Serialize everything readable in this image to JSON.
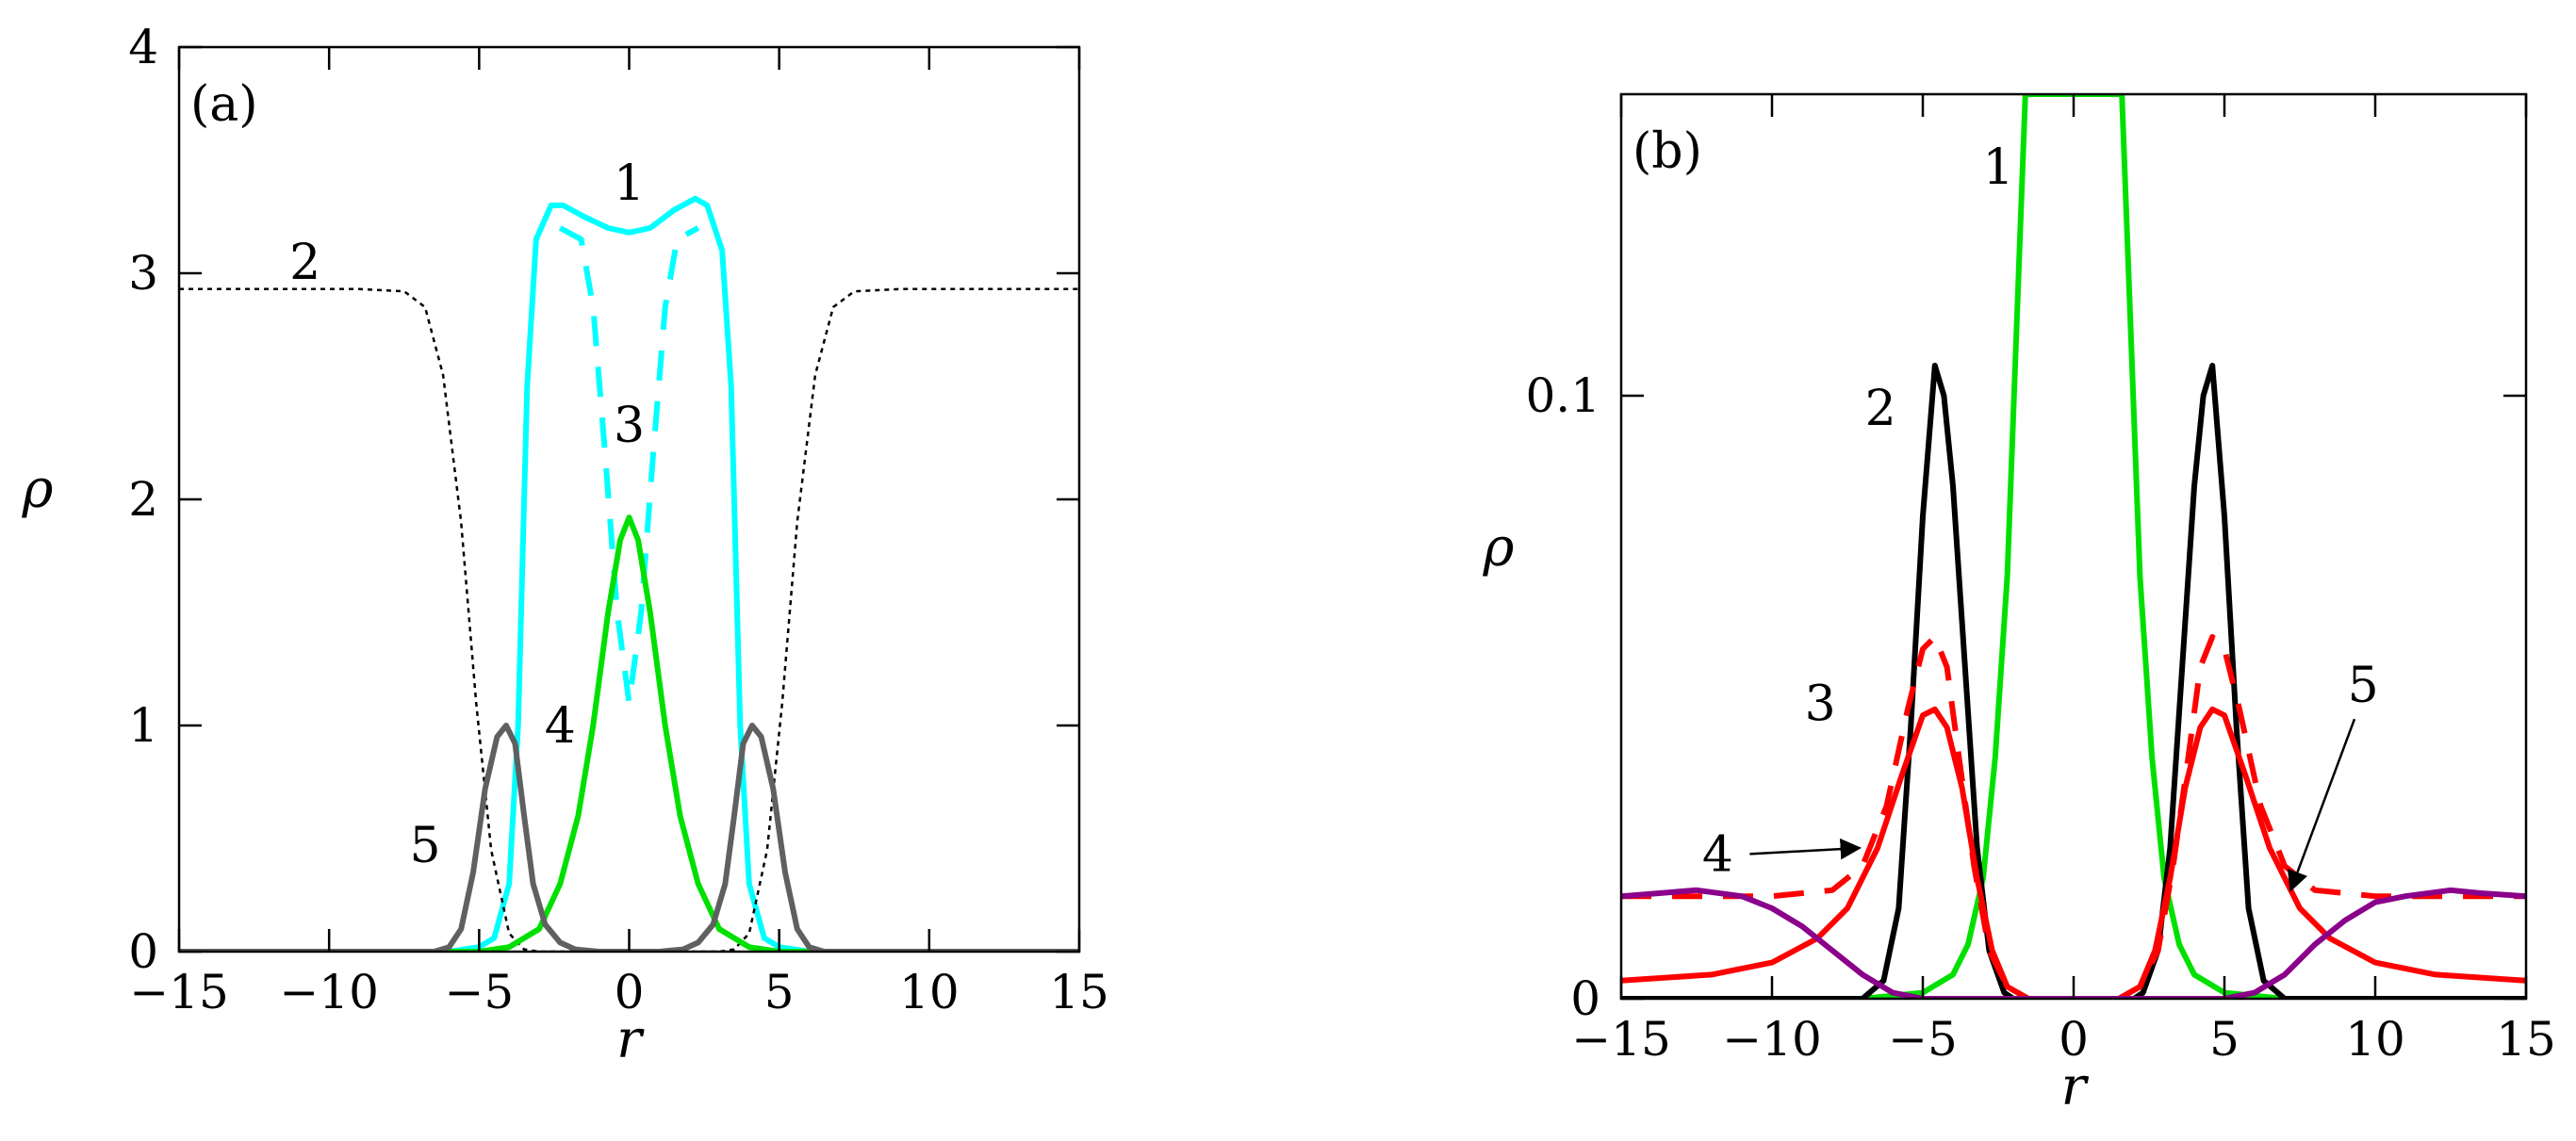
{
  "chart_data": [
    {
      "id": "a",
      "type": "line",
      "panel_label": "(a)",
      "xlabel": "r",
      "ylabel": "ρ",
      "xlim": [
        -15,
        15
      ],
      "ylim": [
        0,
        4
      ],
      "xticks": [
        -15,
        -10,
        -5,
        0,
        5,
        10,
        15
      ],
      "xtick_labels": [
        "−15",
        "−10",
        "−5",
        "0",
        "5",
        "10",
        "15"
      ],
      "yticks": [
        0,
        1,
        2,
        3,
        4
      ],
      "ytick_labels": [
        "0",
        "1",
        "2",
        "3",
        "4"
      ],
      "series": [
        {
          "name": "1 (solid)",
          "color": "#00ffff",
          "style": "solid",
          "points": [
            [
              -15,
              0
            ],
            [
              -6,
              0
            ],
            [
              -5,
              0.02
            ],
            [
              -4.5,
              0.06
            ],
            [
              -4,
              0.3
            ],
            [
              -3.7,
              1.0
            ],
            [
              -3.4,
              2.5
            ],
            [
              -3.1,
              3.15
            ],
            [
              -2.6,
              3.3
            ],
            [
              -2.2,
              3.3
            ],
            [
              -1.5,
              3.25
            ],
            [
              -0.7,
              3.2
            ],
            [
              0,
              3.18
            ],
            [
              0.7,
              3.2
            ],
            [
              1.5,
              3.28
            ],
            [
              2.2,
              3.33
            ],
            [
              2.6,
              3.3
            ],
            [
              3.1,
              3.1
            ],
            [
              3.4,
              2.5
            ],
            [
              3.7,
              1.0
            ],
            [
              4,
              0.3
            ],
            [
              4.5,
              0.06
            ],
            [
              5,
              0.02
            ],
            [
              6,
              0
            ],
            [
              15,
              0
            ]
          ]
        },
        {
          "name": "2 (dotted)",
          "color": "#000000",
          "style": "dotted",
          "points": [
            [
              -15,
              2.93
            ],
            [
              -9,
              2.93
            ],
            [
              -7.5,
              2.92
            ],
            [
              -6.8,
              2.85
            ],
            [
              -6.2,
              2.55
            ],
            [
              -5.6,
              1.9
            ],
            [
              -5.1,
              1.1
            ],
            [
              -4.6,
              0.45
            ],
            [
              -4,
              0.08
            ],
            [
              -3.5,
              0.01
            ],
            [
              -3,
              0
            ],
            [
              3,
              0
            ],
            [
              3.5,
              0.01
            ],
            [
              4,
              0.08
            ],
            [
              4.6,
              0.45
            ],
            [
              5.1,
              1.1
            ],
            [
              5.6,
              1.9
            ],
            [
              6.2,
              2.55
            ],
            [
              6.8,
              2.85
            ],
            [
              7.5,
              2.92
            ],
            [
              9,
              2.93
            ],
            [
              15,
              2.93
            ]
          ]
        },
        {
          "name": "3 (dashed)",
          "color": "#00ffff",
          "style": "dashed",
          "points": [
            [
              -2.3,
              3.2
            ],
            [
              -1.6,
              3.15
            ],
            [
              -1.2,
              2.85
            ],
            [
              -0.8,
              2.2
            ],
            [
              -0.4,
              1.5
            ],
            [
              0,
              1.1
            ],
            [
              0.4,
              1.5
            ],
            [
              0.8,
              2.2
            ],
            [
              1.2,
              2.85
            ],
            [
              1.6,
              3.15
            ],
            [
              2.3,
              3.2
            ]
          ]
        },
        {
          "name": "4",
          "color": "#00e000",
          "style": "solid",
          "points": [
            [
              -15,
              0
            ],
            [
              -5,
              0
            ],
            [
              -4,
              0.02
            ],
            [
              -3,
              0.1
            ],
            [
              -2.3,
              0.3
            ],
            [
              -1.7,
              0.6
            ],
            [
              -1.2,
              1.0
            ],
            [
              -0.7,
              1.5
            ],
            [
              -0.3,
              1.82
            ],
            [
              0,
              1.92
            ],
            [
              0.3,
              1.82
            ],
            [
              0.7,
              1.5
            ],
            [
              1.2,
              1.0
            ],
            [
              1.7,
              0.6
            ],
            [
              2.3,
              0.3
            ],
            [
              3,
              0.1
            ],
            [
              4,
              0.02
            ],
            [
              5,
              0
            ],
            [
              15,
              0
            ]
          ]
        },
        {
          "name": "5",
          "color": "#606060",
          "style": "solid",
          "points": [
            [
              -15,
              0
            ],
            [
              -6.5,
              0
            ],
            [
              -6,
              0.02
            ],
            [
              -5.6,
              0.1
            ],
            [
              -5.2,
              0.35
            ],
            [
              -4.8,
              0.72
            ],
            [
              -4.4,
              0.95
            ],
            [
              -4.1,
              1.0
            ],
            [
              -3.8,
              0.92
            ],
            [
              -3.5,
              0.6
            ],
            [
              -3.2,
              0.3
            ],
            [
              -2.8,
              0.12
            ],
            [
              -2.3,
              0.04
            ],
            [
              -1.8,
              0.01
            ],
            [
              -1,
              0
            ],
            [
              1,
              0
            ],
            [
              1.8,
              0.01
            ],
            [
              2.3,
              0.04
            ],
            [
              2.8,
              0.12
            ],
            [
              3.2,
              0.3
            ],
            [
              3.5,
              0.6
            ],
            [
              3.8,
              0.92
            ],
            [
              4.1,
              1.0
            ],
            [
              4.4,
              0.95
            ],
            [
              4.8,
              0.72
            ],
            [
              5.2,
              0.35
            ],
            [
              5.6,
              0.1
            ],
            [
              6,
              0.02
            ],
            [
              6.5,
              0
            ],
            [
              15,
              0
            ]
          ]
        }
      ],
      "annotations": [
        {
          "text": "1",
          "x": 0,
          "y": 3.4
        },
        {
          "text": "2",
          "x": -10.8,
          "y": 3.05
        },
        {
          "text": "3",
          "x": 0,
          "y": 2.33
        },
        {
          "text": "4",
          "x": -2.3,
          "y": 1.0
        },
        {
          "text": "5",
          "x": -6.8,
          "y": 0.47
        }
      ]
    },
    {
      "id": "b",
      "type": "line",
      "panel_label": "(b)",
      "xlabel": "r",
      "ylabel": "ρ",
      "xlim": [
        -15,
        15
      ],
      "ylim": [
        0,
        0.15
      ],
      "xticks": [
        -15,
        -10,
        -5,
        0,
        5,
        10,
        15
      ],
      "xtick_labels": [
        "−15",
        "−10",
        "−5",
        "0",
        "5",
        "10",
        "15"
      ],
      "yticks": [
        0,
        0.1
      ],
      "ytick_labels": [
        "0",
        "0.1"
      ],
      "series": [
        {
          "name": "1",
          "color": "#00e000",
          "style": "solid",
          "points": [
            [
              -15,
              0
            ],
            [
              -7,
              0
            ],
            [
              -5,
              0.001
            ],
            [
              -4,
              0.004
            ],
            [
              -3.5,
              0.009
            ],
            [
              -3,
              0.02
            ],
            [
              -2.6,
              0.04
            ],
            [
              -2.2,
              0.07
            ],
            [
              -1.9,
              0.11
            ],
            [
              -1.6,
              0.15
            ],
            [
              1.6,
              0.15
            ],
            [
              1.9,
              0.11
            ],
            [
              2.2,
              0.07
            ],
            [
              2.6,
              0.04
            ],
            [
              3,
              0.02
            ],
            [
              3.5,
              0.009
            ],
            [
              4,
              0.004
            ],
            [
              5,
              0.001
            ],
            [
              7,
              0
            ],
            [
              15,
              0
            ]
          ]
        },
        {
          "name": "2",
          "color": "#000000",
          "style": "solid",
          "points": [
            [
              -15,
              0
            ],
            [
              -7,
              0
            ],
            [
              -6.3,
              0.003
            ],
            [
              -5.8,
              0.015
            ],
            [
              -5.4,
              0.045
            ],
            [
              -5,
              0.08
            ],
            [
              -4.6,
              0.105
            ],
            [
              -4.3,
              0.1
            ],
            [
              -4,
              0.085
            ],
            [
              -3.6,
              0.055
            ],
            [
              -3.2,
              0.025
            ],
            [
              -2.8,
              0.008
            ],
            [
              -2.3,
              0.001
            ],
            [
              -2,
              0
            ],
            [
              2,
              0
            ],
            [
              2.3,
              0.001
            ],
            [
              2.8,
              0.008
            ],
            [
              3.2,
              0.025
            ],
            [
              3.6,
              0.055
            ],
            [
              4,
              0.085
            ],
            [
              4.3,
              0.1
            ],
            [
              4.6,
              0.105
            ],
            [
              5,
              0.08
            ],
            [
              5.4,
              0.045
            ],
            [
              5.8,
              0.015
            ],
            [
              6.3,
              0.003
            ],
            [
              7,
              0
            ],
            [
              15,
              0
            ]
          ]
        },
        {
          "name": "3 (solid)",
          "color": "#ff0000",
          "style": "solid",
          "points": [
            [
              -15,
              0.003
            ],
            [
              -12,
              0.004
            ],
            [
              -10,
              0.006
            ],
            [
              -8.5,
              0.01
            ],
            [
              -7.5,
              0.015
            ],
            [
              -6.5,
              0.025
            ],
            [
              -5.7,
              0.037
            ],
            [
              -5,
              0.047
            ],
            [
              -4.6,
              0.048
            ],
            [
              -4.2,
              0.045
            ],
            [
              -3.7,
              0.035
            ],
            [
              -3.2,
              0.02
            ],
            [
              -2.7,
              0.008
            ],
            [
              -2.2,
              0.002
            ],
            [
              -1.5,
              0
            ],
            [
              1.5,
              0
            ],
            [
              2.2,
              0.002
            ],
            [
              2.7,
              0.008
            ],
            [
              3.2,
              0.02
            ],
            [
              3.7,
              0.035
            ],
            [
              4.2,
              0.045
            ],
            [
              4.6,
              0.048
            ],
            [
              5,
              0.047
            ],
            [
              5.7,
              0.037
            ],
            [
              6.5,
              0.025
            ],
            [
              7.5,
              0.015
            ],
            [
              8.5,
              0.01
            ],
            [
              10,
              0.006
            ],
            [
              12,
              0.004
            ],
            [
              15,
              0.003
            ]
          ]
        },
        {
          "name": "3 (dashed)",
          "color": "#ff0000",
          "style": "dashed",
          "points": [
            [
              -15,
              0.017
            ],
            [
              -10,
              0.017
            ],
            [
              -8,
              0.018
            ],
            [
              -7,
              0.022
            ],
            [
              -6.2,
              0.032
            ],
            [
              -5.5,
              0.048
            ],
            [
              -5,
              0.058
            ],
            [
              -4.6,
              0.06
            ],
            [
              -4.2,
              0.055
            ],
            [
              -3.8,
              0.04
            ],
            [
              -3.3,
              0.022
            ],
            [
              -2.8,
              0.008
            ],
            [
              -2.2,
              0.002
            ],
            [
              -1.5,
              0
            ],
            [
              1.5,
              0
            ],
            [
              2.2,
              0.002
            ],
            [
              2.8,
              0.008
            ],
            [
              3.3,
              0.022
            ],
            [
              3.8,
              0.04
            ],
            [
              4.2,
              0.055
            ],
            [
              4.6,
              0.06
            ],
            [
              5,
              0.058
            ],
            [
              5.5,
              0.048
            ],
            [
              6.2,
              0.032
            ],
            [
              7,
              0.022
            ],
            [
              8,
              0.018
            ],
            [
              10,
              0.017
            ],
            [
              15,
              0.017
            ]
          ]
        },
        {
          "name": "5",
          "color": "#8a008a",
          "style": "solid",
          "points": [
            [
              -15,
              0.017
            ],
            [
              -12.5,
              0.018
            ],
            [
              -11,
              0.017
            ],
            [
              -10,
              0.015
            ],
            [
              -9,
              0.012
            ],
            [
              -8,
              0.008
            ],
            [
              -7,
              0.004
            ],
            [
              -6,
              0.001
            ],
            [
              -5,
              0
            ],
            [
              5,
              0
            ],
            [
              6,
              0.001
            ],
            [
              7,
              0.004
            ],
            [
              8,
              0.009
            ],
            [
              9,
              0.013
            ],
            [
              10,
              0.016
            ],
            [
              11,
              0.017
            ],
            [
              12.5,
              0.018
            ],
            [
              13.5,
              0.0175
            ],
            [
              15,
              0.017
            ]
          ]
        }
      ],
      "annotations": [
        {
          "text": "1",
          "x": -2.5,
          "y": 0.138
        },
        {
          "text": "2",
          "x": -6.4,
          "y": 0.098
        },
        {
          "text": "3",
          "x": -8.4,
          "y": 0.049
        },
        {
          "text": "4",
          "x": -11.8,
          "y": 0.024,
          "arrow_to": [
            -7.1,
            0.025
          ]
        },
        {
          "text": "5",
          "x": 9.6,
          "y": 0.052,
          "arrow_to": [
            7.2,
            0.018
          ]
        }
      ]
    }
  ]
}
